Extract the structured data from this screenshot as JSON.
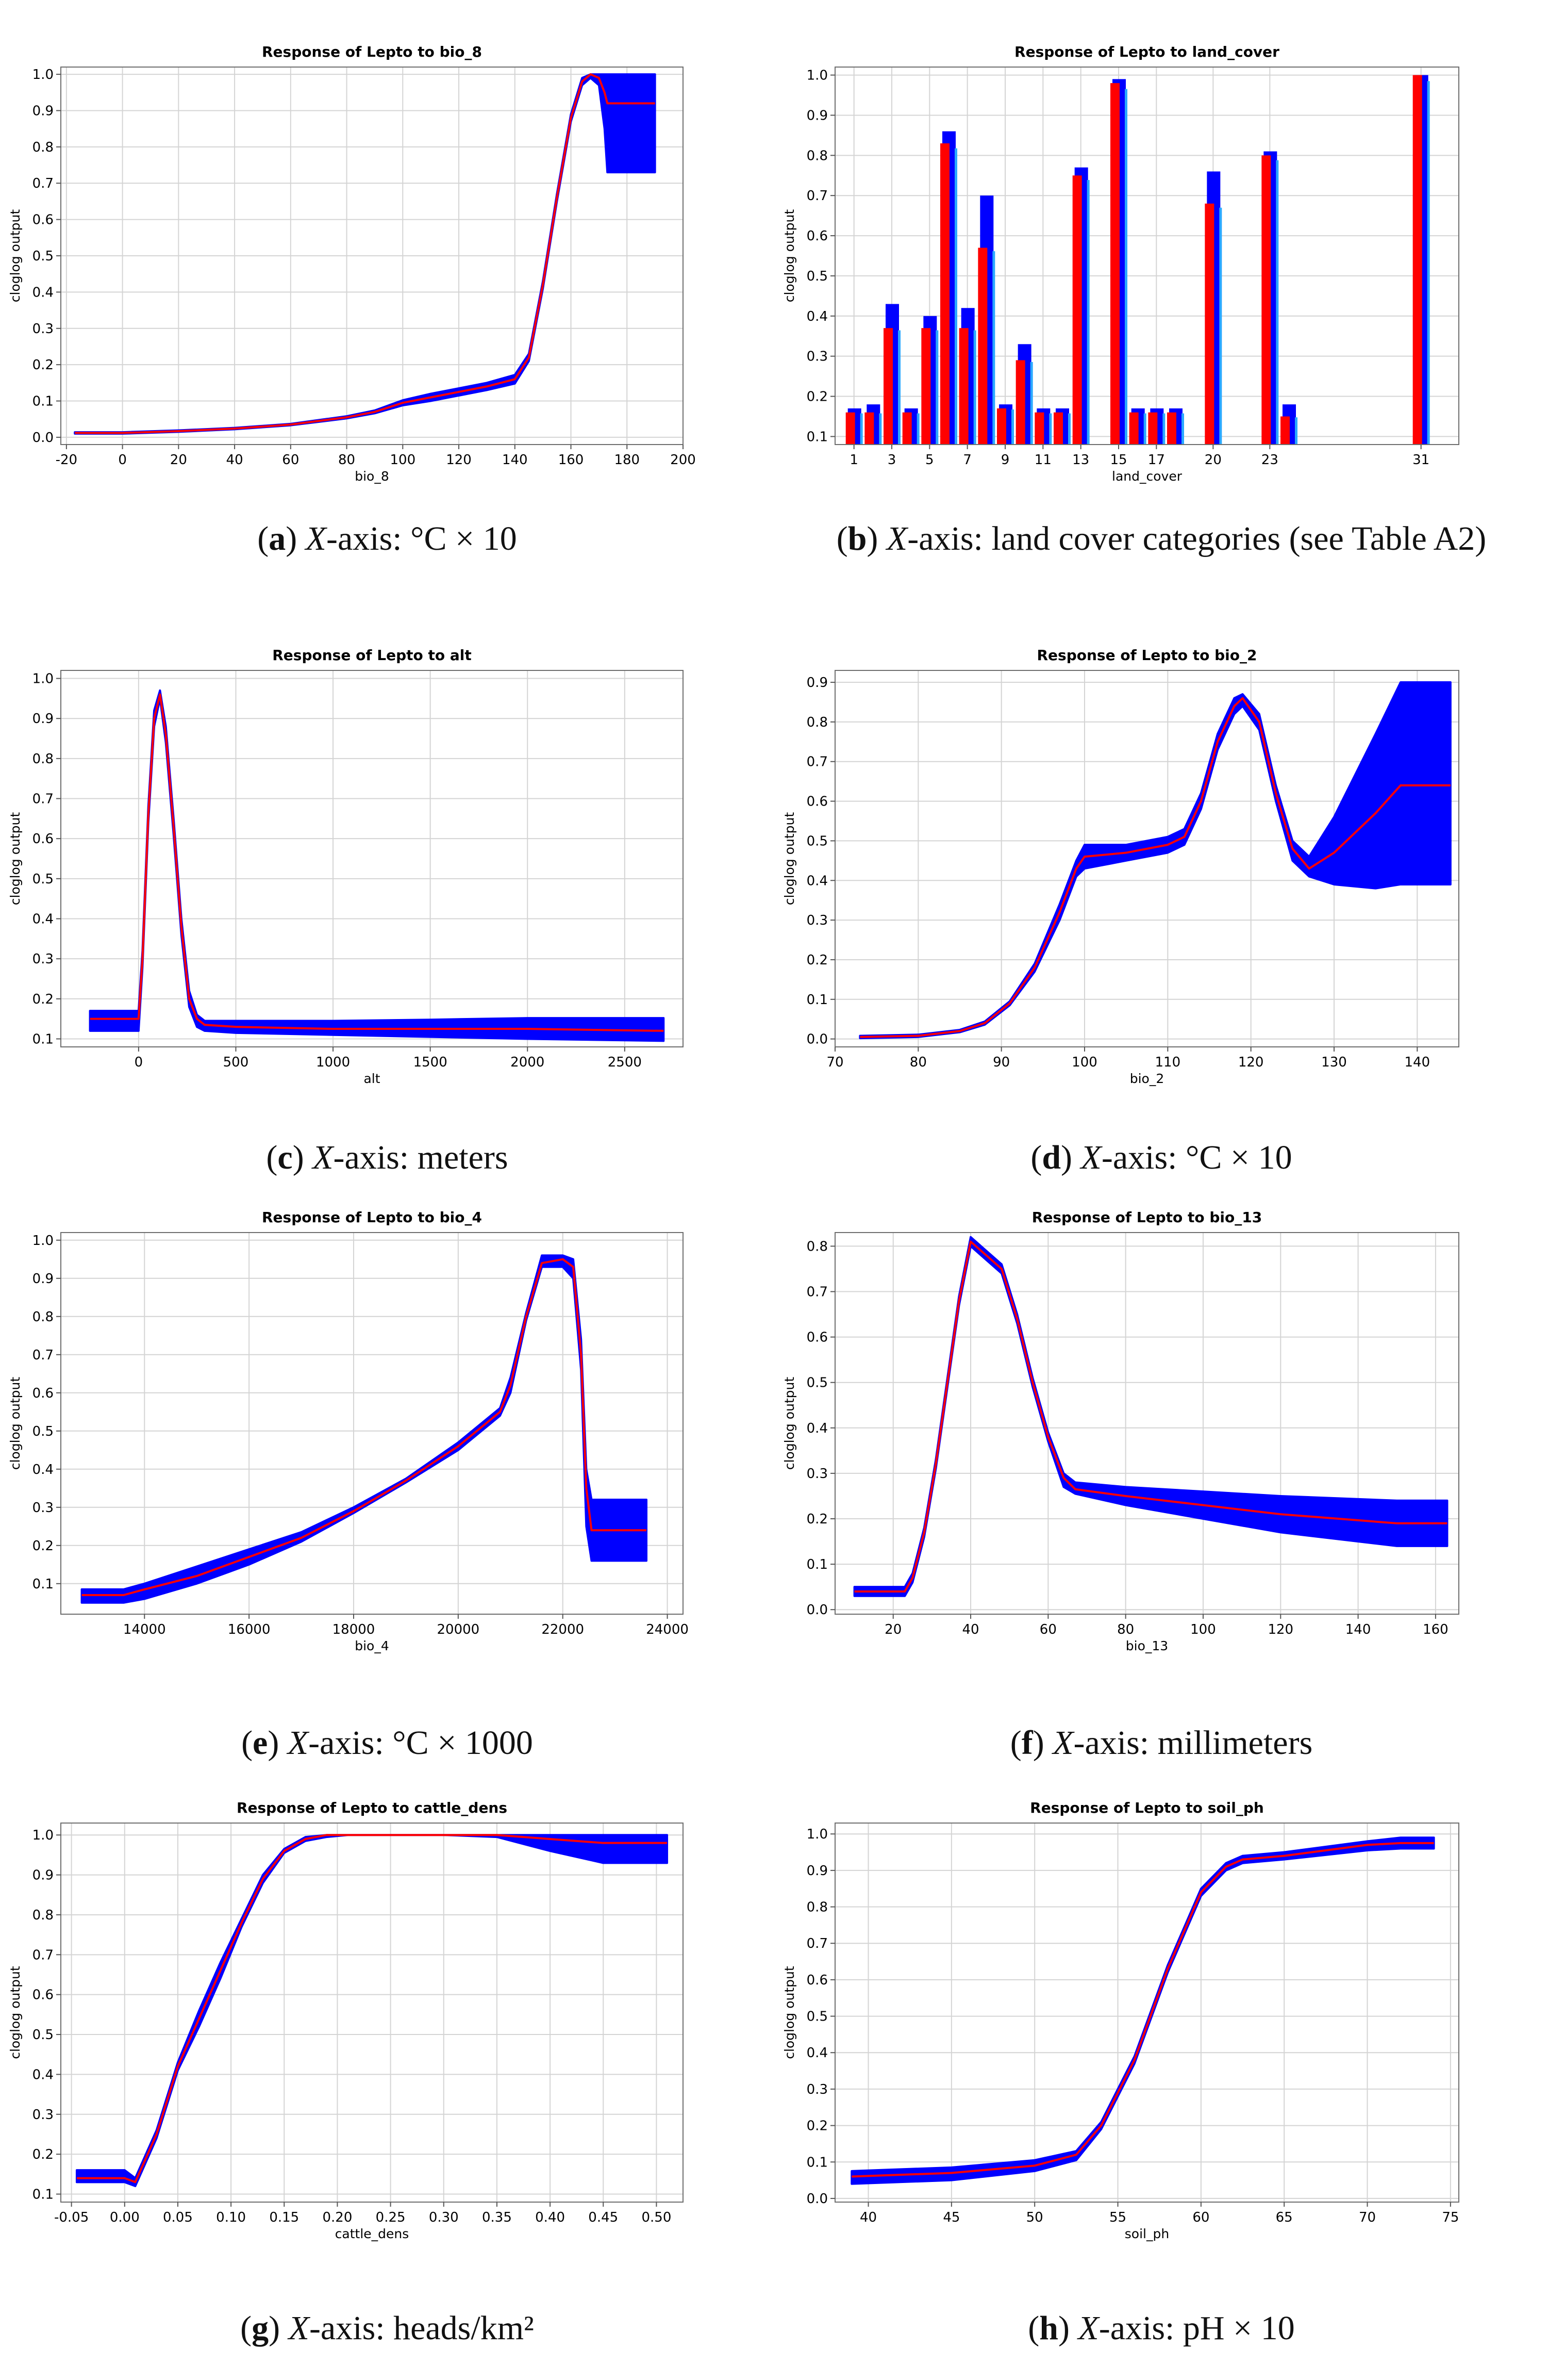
{
  "colors": {
    "band": "#0000ff",
    "mean": "#ff0000",
    "grid": "#d4d4d4"
  },
  "chart_data": [
    {
      "id": "a",
      "type": "line",
      "title": "Response of Lepto to bio_8",
      "xlabel": "bio_8",
      "ylabel": "cloglog output",
      "xlim": [
        -22,
        200
      ],
      "ylim": [
        -0.02,
        1.02
      ],
      "xticks": [
        -20,
        0,
        20,
        40,
        60,
        80,
        100,
        120,
        140,
        160,
        180,
        200
      ],
      "xtick_labels": [
        "-20",
        "0",
        "20",
        "40",
        "60",
        "80",
        "100",
        "120",
        "140",
        "160",
        "180",
        "200"
      ],
      "yticks": [
        0.0,
        0.1,
        0.2,
        0.3,
        0.4,
        0.5,
        0.6,
        0.7,
        0.8,
        0.9,
        1.0
      ],
      "ytick_labels": [
        "0.0",
        "0.1",
        "0.2",
        "0.3",
        "0.4",
        "0.5",
        "0.6",
        "0.7",
        "0.8",
        "0.9",
        "1.0"
      ],
      "x": [
        -17,
        0,
        20,
        40,
        60,
        80,
        90,
        100,
        110,
        120,
        130,
        140,
        145,
        150,
        155,
        160,
        164,
        167,
        170,
        172,
        173,
        175,
        180,
        190
      ],
      "mean": [
        0.012,
        0.012,
        0.017,
        0.024,
        0.035,
        0.055,
        0.07,
        0.095,
        0.11,
        0.125,
        0.14,
        0.16,
        0.22,
        0.42,
        0.66,
        0.88,
        0.98,
        1.0,
        0.99,
        0.95,
        0.92,
        0.92,
        0.92,
        0.92
      ],
      "lower": [
        0.01,
        0.01,
        0.015,
        0.022,
        0.033,
        0.052,
        0.066,
        0.088,
        0.1,
        0.115,
        0.13,
        0.148,
        0.21,
        0.41,
        0.65,
        0.87,
        0.97,
        0.99,
        0.97,
        0.85,
        0.73,
        0.73,
        0.73,
        0.73
      ],
      "upper": [
        0.014,
        0.014,
        0.019,
        0.026,
        0.037,
        0.058,
        0.074,
        0.102,
        0.12,
        0.135,
        0.15,
        0.172,
        0.23,
        0.43,
        0.67,
        0.89,
        0.99,
        1.0,
        1.0,
        1.0,
        1.0,
        1.0,
        1.0,
        1.0
      ],
      "caption": {
        "letter": "a",
        "axis": "X",
        "text": "-axis: °C × 10"
      }
    },
    {
      "id": "b",
      "type": "bar",
      "title": "Response of Lepto to land_cover",
      "xlabel": "land_cover",
      "ylabel": "cloglog output",
      "xlim": [
        0,
        33
      ],
      "ylim": [
        0.08,
        1.02
      ],
      "xticks": [
        1,
        3,
        5,
        7,
        9,
        11,
        13,
        15,
        17,
        20,
        23,
        31
      ],
      "xtick_labels": [
        "1",
        "3",
        "5",
        "7",
        "9",
        "11",
        "13",
        "15",
        "17",
        "20",
        "23",
        "31"
      ],
      "yticks": [
        0.1,
        0.2,
        0.3,
        0.4,
        0.5,
        0.6,
        0.7,
        0.8,
        0.9,
        1.0
      ],
      "ytick_labels": [
        "0.1",
        "0.2",
        "0.3",
        "0.4",
        "0.5",
        "0.6",
        "0.7",
        "0.8",
        "0.9",
        "1.0"
      ],
      "categories": [
        1,
        2,
        3,
        4,
        5,
        6,
        7,
        8,
        9,
        10,
        11,
        12,
        13,
        15,
        16,
        17,
        18,
        20,
        23,
        24,
        31
      ],
      "mean": [
        0.16,
        0.16,
        0.37,
        0.16,
        0.37,
        0.83,
        0.37,
        0.57,
        0.17,
        0.29,
        0.16,
        0.16,
        0.75,
        0.98,
        0.16,
        0.16,
        0.16,
        0.68,
        0.8,
        0.15,
        1.0
      ],
      "upper": [
        0.17,
        0.18,
        0.43,
        0.17,
        0.4,
        0.86,
        0.42,
        0.7,
        0.18,
        0.33,
        0.17,
        0.17,
        0.77,
        0.99,
        0.17,
        0.17,
        0.17,
        0.76,
        0.81,
        0.18,
        1.0
      ],
      "caption": {
        "letter": "b",
        "axis": "X",
        "text": "-axis: land cover categories (see Table A2)"
      }
    },
    {
      "id": "c",
      "type": "line",
      "title": "Response of Lepto to alt",
      "xlabel": "alt",
      "ylabel": "cloglog output",
      "xlim": [
        -400,
        2800
      ],
      "ylim": [
        0.08,
        1.02
      ],
      "xticks": [
        0,
        500,
        1000,
        1500,
        2000,
        2500
      ],
      "xtick_labels": [
        "0",
        "500",
        "1000",
        "1500",
        "2000",
        "2500"
      ],
      "yticks": [
        0.1,
        0.2,
        0.3,
        0.4,
        0.5,
        0.6,
        0.7,
        0.8,
        0.9,
        1.0
      ],
      "ytick_labels": [
        "0.1",
        "0.2",
        "0.3",
        "0.4",
        "0.5",
        "0.6",
        "0.7",
        "0.8",
        "0.9",
        "1.0"
      ],
      "x": [
        -250,
        0,
        20,
        50,
        80,
        110,
        140,
        180,
        220,
        260,
        300,
        340,
        500,
        1000,
        1500,
        2000,
        2700
      ],
      "mean": [
        0.15,
        0.15,
        0.3,
        0.66,
        0.9,
        0.96,
        0.86,
        0.63,
        0.38,
        0.2,
        0.15,
        0.135,
        0.13,
        0.125,
        0.125,
        0.125,
        0.12
      ],
      "lower": [
        0.12,
        0.12,
        0.28,
        0.64,
        0.88,
        0.95,
        0.84,
        0.61,
        0.36,
        0.18,
        0.13,
        0.12,
        0.115,
        0.11,
        0.105,
        0.1,
        0.095
      ],
      "upper": [
        0.17,
        0.17,
        0.32,
        0.68,
        0.92,
        0.97,
        0.88,
        0.65,
        0.4,
        0.22,
        0.16,
        0.145,
        0.145,
        0.145,
        0.148,
        0.152,
        0.152
      ],
      "caption": {
        "letter": "c",
        "axis": "X",
        "text": "-axis: meters"
      }
    },
    {
      "id": "d",
      "type": "line",
      "title": "Response of Lepto to bio_2",
      "xlabel": "bio_2",
      "ylabel": "cloglog output",
      "xlim": [
        70,
        145
      ],
      "ylim": [
        -0.02,
        0.93
      ],
      "xticks": [
        70,
        80,
        90,
        100,
        110,
        120,
        130,
        140
      ],
      "xtick_labels": [
        "70",
        "80",
        "90",
        "100",
        "110",
        "120",
        "130",
        "140"
      ],
      "yticks": [
        0.0,
        0.1,
        0.2,
        0.3,
        0.4,
        0.5,
        0.6,
        0.7,
        0.8,
        0.9
      ],
      "ytick_labels": [
        "0.0",
        "0.1",
        "0.2",
        "0.3",
        "0.4",
        "0.5",
        "0.6",
        "0.7",
        "0.8",
        "0.9"
      ],
      "x": [
        73,
        80,
        85,
        88,
        91,
        94,
        97,
        99,
        100,
        105,
        110,
        112,
        114,
        116,
        118,
        119,
        121,
        123,
        125,
        127,
        130,
        135,
        138,
        144
      ],
      "mean": [
        0.005,
        0.008,
        0.02,
        0.04,
        0.09,
        0.18,
        0.32,
        0.43,
        0.46,
        0.47,
        0.49,
        0.51,
        0.6,
        0.75,
        0.84,
        0.86,
        0.8,
        0.62,
        0.48,
        0.43,
        0.47,
        0.57,
        0.64,
        0.64
      ],
      "lower": [
        0.002,
        0.005,
        0.017,
        0.036,
        0.085,
        0.17,
        0.3,
        0.41,
        0.43,
        0.45,
        0.47,
        0.49,
        0.58,
        0.73,
        0.82,
        0.84,
        0.78,
        0.6,
        0.45,
        0.41,
        0.39,
        0.38,
        0.39,
        0.39
      ],
      "upper": [
        0.008,
        0.011,
        0.023,
        0.044,
        0.095,
        0.19,
        0.34,
        0.45,
        0.49,
        0.49,
        0.51,
        0.53,
        0.62,
        0.77,
        0.86,
        0.87,
        0.82,
        0.64,
        0.5,
        0.46,
        0.56,
        0.77,
        0.9,
        0.9
      ],
      "caption": {
        "letter": "d",
        "axis": "X",
        "text": "-axis: °C × 10"
      }
    },
    {
      "id": "e",
      "type": "line",
      "title": "Response of Lepto to bio_4",
      "xlabel": "bio_4",
      "ylabel": "cloglog output",
      "xlim": [
        12400,
        24300
      ],
      "ylim": [
        0.02,
        1.02
      ],
      "xticks": [
        14000,
        16000,
        18000,
        20000,
        22000,
        24000
      ],
      "xtick_labels": [
        "14000",
        "16000",
        "18000",
        "20000",
        "22000",
        "24000"
      ],
      "yticks": [
        0.1,
        0.2,
        0.3,
        0.4,
        0.5,
        0.6,
        0.7,
        0.8,
        0.9,
        1.0
      ],
      "ytick_labels": [
        "0.1",
        "0.2",
        "0.3",
        "0.4",
        "0.5",
        "0.6",
        "0.7",
        "0.8",
        "0.9",
        "1.0"
      ],
      "x": [
        12800,
        13600,
        14000,
        15000,
        16000,
        17000,
        18000,
        19000,
        20000,
        20800,
        21000,
        21300,
        21600,
        22000,
        22200,
        22350,
        22450,
        22550,
        22700,
        23600
      ],
      "mean": [
        0.07,
        0.07,
        0.085,
        0.12,
        0.17,
        0.22,
        0.29,
        0.37,
        0.46,
        0.55,
        0.62,
        0.8,
        0.94,
        0.95,
        0.93,
        0.7,
        0.35,
        0.24,
        0.24,
        0.24
      ],
      "lower": [
        0.05,
        0.05,
        0.06,
        0.1,
        0.15,
        0.21,
        0.285,
        0.365,
        0.45,
        0.54,
        0.6,
        0.79,
        0.93,
        0.93,
        0.9,
        0.66,
        0.25,
        0.16,
        0.16,
        0.16
      ],
      "upper": [
        0.085,
        0.085,
        0.1,
        0.145,
        0.19,
        0.235,
        0.3,
        0.375,
        0.47,
        0.56,
        0.64,
        0.81,
        0.96,
        0.96,
        0.95,
        0.74,
        0.4,
        0.32,
        0.32,
        0.32
      ],
      "caption": {
        "letter": "e",
        "axis": "X",
        "text": "-axis: °C × 1000"
      }
    },
    {
      "id": "f",
      "type": "line",
      "title": "Response of Lepto to bio_13",
      "xlabel": "bio_13",
      "ylabel": "cloglog output",
      "xlim": [
        5,
        166
      ],
      "ylim": [
        -0.01,
        0.83
      ],
      "xticks": [
        20,
        40,
        60,
        80,
        100,
        120,
        140,
        160
      ],
      "xtick_labels": [
        "20",
        "40",
        "60",
        "80",
        "100",
        "120",
        "140",
        "160"
      ],
      "yticks": [
        0.0,
        0.1,
        0.2,
        0.3,
        0.4,
        0.5,
        0.6,
        0.7,
        0.8
      ],
      "ytick_labels": [
        "0.0",
        "0.1",
        "0.2",
        "0.3",
        "0.4",
        "0.5",
        "0.6",
        "0.7",
        "0.8"
      ],
      "x": [
        10,
        23,
        25,
        28,
        31,
        34,
        37,
        40,
        44,
        48,
        52,
        56,
        60,
        64,
        67,
        80,
        100,
        120,
        150,
        163
      ],
      "mean": [
        0.04,
        0.04,
        0.07,
        0.17,
        0.32,
        0.5,
        0.68,
        0.81,
        0.78,
        0.75,
        0.64,
        0.5,
        0.38,
        0.29,
        0.265,
        0.25,
        0.23,
        0.21,
        0.19,
        0.19
      ],
      "lower": [
        0.03,
        0.03,
        0.06,
        0.16,
        0.31,
        0.49,
        0.67,
        0.8,
        0.77,
        0.74,
        0.63,
        0.49,
        0.37,
        0.27,
        0.255,
        0.23,
        0.2,
        0.17,
        0.14,
        0.14
      ],
      "upper": [
        0.05,
        0.05,
        0.08,
        0.18,
        0.33,
        0.51,
        0.69,
        0.82,
        0.79,
        0.76,
        0.65,
        0.51,
        0.39,
        0.3,
        0.28,
        0.27,
        0.26,
        0.25,
        0.24,
        0.24
      ],
      "caption": {
        "letter": "f",
        "axis": "X",
        "text": "-axis: millimeters"
      }
    },
    {
      "id": "g",
      "type": "line",
      "title": "Response of Lepto to cattle_dens",
      "xlabel": "cattle_dens",
      "ylabel": "cloglog output",
      "xlim": [
        -0.06,
        0.525
      ],
      "ylim": [
        0.08,
        1.03
      ],
      "xticks": [
        -0.05,
        0.0,
        0.05,
        0.1,
        0.15,
        0.2,
        0.25,
        0.3,
        0.35,
        0.4,
        0.45,
        0.5
      ],
      "xtick_labels": [
        "-0.05",
        "0.00",
        "0.05",
        "0.10",
        "0.15",
        "0.20",
        "0.25",
        "0.30",
        "0.35",
        "0.40",
        "0.45",
        "0.50"
      ],
      "yticks": [
        0.1,
        0.2,
        0.3,
        0.4,
        0.5,
        0.6,
        0.7,
        0.8,
        0.9,
        1.0
      ],
      "ytick_labels": [
        "0.1",
        "0.2",
        "0.3",
        "0.4",
        "0.5",
        "0.6",
        "0.7",
        "0.8",
        "0.9",
        "1.0"
      ],
      "x": [
        -0.045,
        0.0,
        0.01,
        0.03,
        0.05,
        0.07,
        0.09,
        0.11,
        0.13,
        0.15,
        0.17,
        0.19,
        0.21,
        0.25,
        0.3,
        0.35,
        0.4,
        0.45,
        0.51
      ],
      "mean": [
        0.14,
        0.14,
        0.13,
        0.25,
        0.42,
        0.54,
        0.66,
        0.78,
        0.89,
        0.96,
        0.99,
        1.0,
        1.0,
        1.0,
        1.0,
        1.0,
        0.99,
        0.98,
        0.98
      ],
      "lower": [
        0.13,
        0.13,
        0.12,
        0.24,
        0.41,
        0.52,
        0.64,
        0.77,
        0.88,
        0.955,
        0.985,
        0.995,
        1.0,
        1.0,
        1.0,
        0.995,
        0.96,
        0.93,
        0.93
      ],
      "upper": [
        0.16,
        0.16,
        0.14,
        0.26,
        0.43,
        0.56,
        0.68,
        0.79,
        0.9,
        0.965,
        0.995,
        1.0,
        1.0,
        1.0,
        1.0,
        1.0,
        1.0,
        1.0,
        1.0
      ],
      "caption": {
        "letter": "g",
        "axis": "X",
        "text": "-axis: heads/km²"
      }
    },
    {
      "id": "h",
      "type": "line",
      "title": "Response of Lepto to soil_ph",
      "xlabel": "soil_ph",
      "ylabel": "cloglog output",
      "xlim": [
        38,
        75.5
      ],
      "ylim": [
        -0.01,
        1.03
      ],
      "xticks": [
        40,
        45,
        50,
        55,
        60,
        65,
        70,
        75
      ],
      "xtick_labels": [
        "40",
        "45",
        "50",
        "55",
        "60",
        "65",
        "70",
        "75"
      ],
      "yticks": [
        0.0,
        0.1,
        0.2,
        0.3,
        0.4,
        0.5,
        0.6,
        0.7,
        0.8,
        0.9,
        1.0
      ],
      "ytick_labels": [
        "0.0",
        "0.1",
        "0.2",
        "0.3",
        "0.4",
        "0.5",
        "0.6",
        "0.7",
        "0.8",
        "0.9",
        "1.0"
      ],
      "x": [
        39,
        45,
        50,
        52.5,
        54,
        56,
        58,
        60,
        61.5,
        62.5,
        65,
        70,
        72,
        74
      ],
      "mean": [
        0.06,
        0.07,
        0.09,
        0.12,
        0.2,
        0.38,
        0.63,
        0.84,
        0.91,
        0.93,
        0.94,
        0.97,
        0.975,
        0.975
      ],
      "lower": [
        0.04,
        0.05,
        0.075,
        0.105,
        0.19,
        0.37,
        0.62,
        0.83,
        0.9,
        0.92,
        0.93,
        0.955,
        0.96,
        0.96
      ],
      "upper": [
        0.075,
        0.085,
        0.105,
        0.13,
        0.21,
        0.39,
        0.64,
        0.85,
        0.92,
        0.94,
        0.95,
        0.98,
        0.99,
        0.99
      ],
      "caption": {
        "letter": "h",
        "axis": "X",
        "text": "-axis: pH × 10"
      }
    }
  ]
}
